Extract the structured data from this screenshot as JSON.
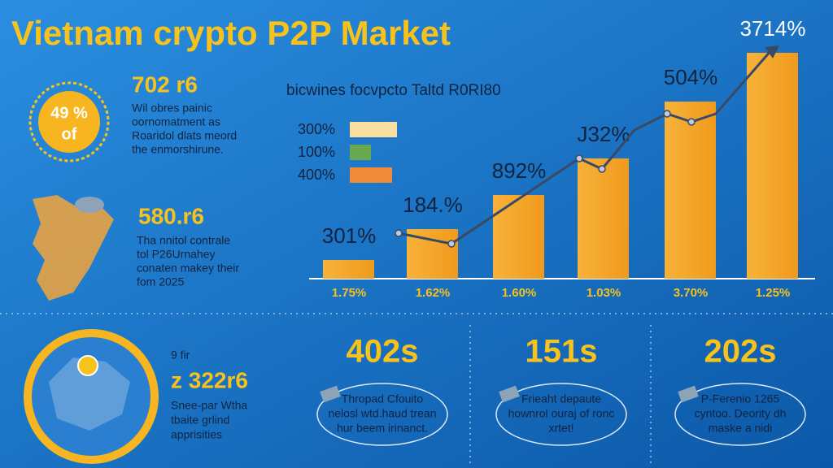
{
  "title": "Vietnam crypto P2P Market",
  "badge": {
    "value": "49 %",
    "sub": "of"
  },
  "stats": [
    {
      "value": "702 r6",
      "lines": [
        "Wil obres painic",
        "oornomatment as",
        "Roaridol dlats meord",
        "the enmorshirune."
      ]
    },
    {
      "value": "580.r6",
      "lines": [
        "Tha nnitol contrale",
        "tol P26Urnahey",
        "conaten makey their",
        "fom 2025"
      ]
    }
  ],
  "chart": {
    "subtitle": "bicwines focvpcto Taltd R0RI80",
    "legend": [
      "300%",
      "100%",
      "400%"
    ],
    "bars": [
      {
        "top": "301%",
        "bottom": "1.75%"
      },
      {
        "top": "184.%",
        "bottom": "1.62%"
      },
      {
        "top": "892%",
        "bottom": "1.60%"
      },
      {
        "top": "J32%",
        "bottom": "1.03%"
      },
      {
        "top": "504%",
        "bottom": "3.70%"
      },
      {
        "top": "3714%",
        "bottom": "1.25%"
      }
    ]
  },
  "bottom": {
    "map_stat": {
      "kicker": "9 fir",
      "value": "z 322r6",
      "lines": [
        "Snee-par Wtha",
        "tbaite grlind",
        "apprisities"
      ]
    },
    "cards": [
      {
        "value": "402s",
        "lines": [
          "Thropad Cfouito",
          "nelosl wtd.haud trean",
          "hur beem irinanct."
        ]
      },
      {
        "value": "151s",
        "lines": [
          "Frieaht depaute",
          "hownrol ouraj of ronc",
          "xrtet!"
        ]
      },
      {
        "value": "202s",
        "lines": [
          "P-Ferenio 1265",
          "cyntoo. Deority dh",
          "maske a nidi"
        ]
      }
    ]
  }
}
